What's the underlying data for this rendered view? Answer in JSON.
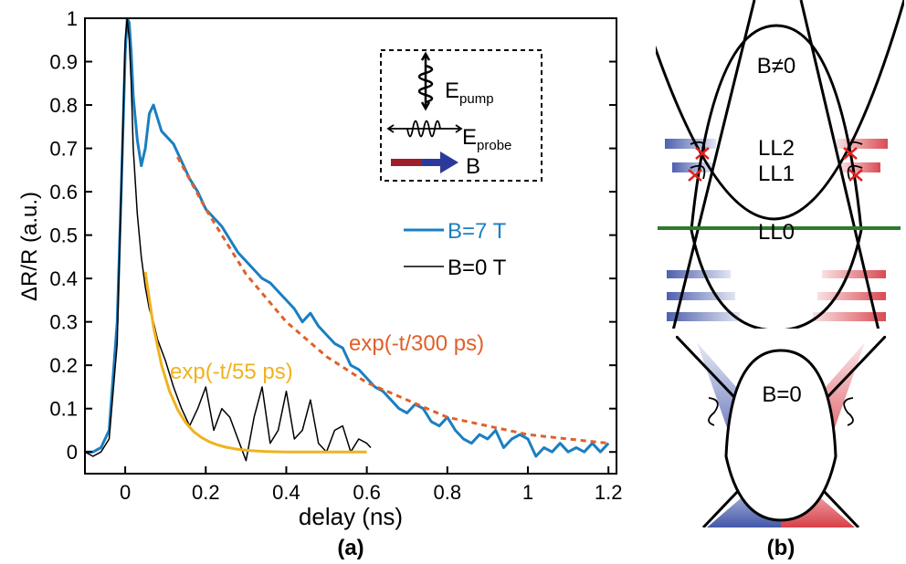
{
  "figure": {
    "panel_a_label": "(a)",
    "panel_b_label": "(b)"
  },
  "chart_data": {
    "type": "line",
    "xlabel": "delay (ns)",
    "ylabel": "ΔR/R (a.u.)",
    "xlim": [
      -0.1,
      1.22
    ],
    "ylim": [
      -0.05,
      1.0
    ],
    "xticks": [
      "0",
      "0.2",
      "0.4",
      "0.6",
      "0.8",
      "1",
      "1.2"
    ],
    "yticks": [
      "0",
      "0.1",
      "0.2",
      "0.3",
      "0.4",
      "0.5",
      "0.6",
      "0.7",
      "0.8",
      "0.9",
      "1"
    ],
    "grid": false,
    "series": [
      {
        "name": "B=7 T",
        "color": "#1a7fc1",
        "x": [
          -0.1,
          -0.08,
          -0.06,
          -0.04,
          -0.02,
          -0.01,
          0,
          0.005,
          0.01,
          0.015,
          0.02,
          0.03,
          0.04,
          0.05,
          0.06,
          0.07,
          0.08,
          0.09,
          0.1,
          0.12,
          0.14,
          0.16,
          0.18,
          0.2,
          0.22,
          0.24,
          0.26,
          0.28,
          0.3,
          0.32,
          0.34,
          0.36,
          0.38,
          0.4,
          0.42,
          0.44,
          0.46,
          0.48,
          0.5,
          0.52,
          0.54,
          0.56,
          0.58,
          0.6,
          0.62,
          0.64,
          0.66,
          0.68,
          0.7,
          0.72,
          0.74,
          0.76,
          0.78,
          0.8,
          0.82,
          0.84,
          0.86,
          0.88,
          0.9,
          0.92,
          0.94,
          0.96,
          0.98,
          1.0,
          1.02,
          1.04,
          1.06,
          1.08,
          1.1,
          1.12,
          1.14,
          1.16,
          1.18,
          1.2
        ],
        "y": [
          0.0,
          0.0,
          0.01,
          0.05,
          0.3,
          0.6,
          0.92,
          1.0,
          0.99,
          0.92,
          0.82,
          0.72,
          0.66,
          0.7,
          0.78,
          0.8,
          0.77,
          0.74,
          0.73,
          0.71,
          0.67,
          0.63,
          0.6,
          0.56,
          0.54,
          0.52,
          0.49,
          0.46,
          0.44,
          0.42,
          0.4,
          0.39,
          0.37,
          0.35,
          0.33,
          0.3,
          0.32,
          0.29,
          0.27,
          0.25,
          0.24,
          0.2,
          0.19,
          0.17,
          0.15,
          0.14,
          0.12,
          0.1,
          0.09,
          0.11,
          0.1,
          0.07,
          0.06,
          0.08,
          0.05,
          0.03,
          0.02,
          0.04,
          0.03,
          0.05,
          0.01,
          0.03,
          0.04,
          0.03,
          -0.01,
          0.01,
          0.0,
          0.02,
          0.0,
          0.01,
          0.0,
          0.02,
          0.0,
          0.02
        ]
      },
      {
        "name": "B=0 T",
        "color": "#000000",
        "x": [
          -0.1,
          -0.08,
          -0.06,
          -0.04,
          -0.02,
          -0.01,
          0,
          0.005,
          0.01,
          0.015,
          0.02,
          0.03,
          0.04,
          0.05,
          0.06,
          0.07,
          0.08,
          0.1,
          0.12,
          0.14,
          0.16,
          0.18,
          0.2,
          0.22,
          0.24,
          0.26,
          0.28,
          0.3,
          0.32,
          0.34,
          0.36,
          0.38,
          0.4,
          0.42,
          0.44,
          0.46,
          0.48,
          0.5,
          0.52,
          0.54,
          0.56,
          0.58,
          0.6,
          0.61
        ],
        "y": [
          0.0,
          -0.01,
          0.0,
          0.03,
          0.25,
          0.6,
          0.95,
          1.0,
          0.95,
          0.85,
          0.7,
          0.55,
          0.45,
          0.38,
          0.33,
          0.3,
          0.26,
          0.21,
          0.15,
          0.1,
          0.06,
          0.1,
          0.15,
          0.05,
          0.1,
          0.08,
          0.03,
          -0.02,
          0.08,
          0.15,
          0.02,
          0.05,
          0.14,
          0.03,
          0.05,
          0.12,
          0.02,
          0.0,
          0.05,
          0.06,
          0.0,
          0.03,
          0.02,
          0.01
        ]
      },
      {
        "name": "",
        "style": "solid",
        "color": "#f0b21e",
        "x": [
          0.05,
          0.07,
          0.09,
          0.11,
          0.13,
          0.15,
          0.17,
          0.19,
          0.21,
          0.23,
          0.25,
          0.28,
          0.31,
          0.35,
          0.4,
          0.45,
          0.5,
          0.55,
          0.6
        ],
        "y": [
          0.415,
          0.289,
          0.201,
          0.14,
          0.098,
          0.068,
          0.047,
          0.033,
          0.023,
          0.016,
          0.011,
          0.006,
          0.003,
          0.001,
          0.0,
          0.0,
          0.0,
          0.0,
          0.0
        ]
      },
      {
        "name": "",
        "style": "dashed",
        "color": "#e0602a",
        "x": [
          0.13,
          0.2,
          0.3,
          0.4,
          0.5,
          0.6,
          0.7,
          0.8,
          0.9,
          1.0,
          1.1,
          1.2
        ],
        "y": [
          0.68,
          0.56,
          0.41,
          0.3,
          0.22,
          0.16,
          0.12,
          0.08,
          0.06,
          0.04,
          0.03,
          0.02
        ]
      }
    ],
    "legend": {
      "placement": "right-center",
      "entries": [
        "B=7 T",
        "B=0 T"
      ]
    },
    "annotations": {
      "fit_long": "exp(-t/300 ps)",
      "fit_short": "exp(-t/55 ps)"
    },
    "inset": {
      "pump_label": "E",
      "pump_sub": "pump",
      "probe_label": "E",
      "probe_sub": "probe",
      "field_label": "B"
    }
  },
  "panel_b": {
    "top_label": "B≠0",
    "levels": [
      "LL2",
      "LL1",
      "LL0"
    ],
    "bottom_label": "B=0",
    "colors": {
      "blue": "#3a4fa6",
      "red": "#d6363f",
      "green": "#2c7a2c",
      "cross": "#e0201f"
    }
  }
}
